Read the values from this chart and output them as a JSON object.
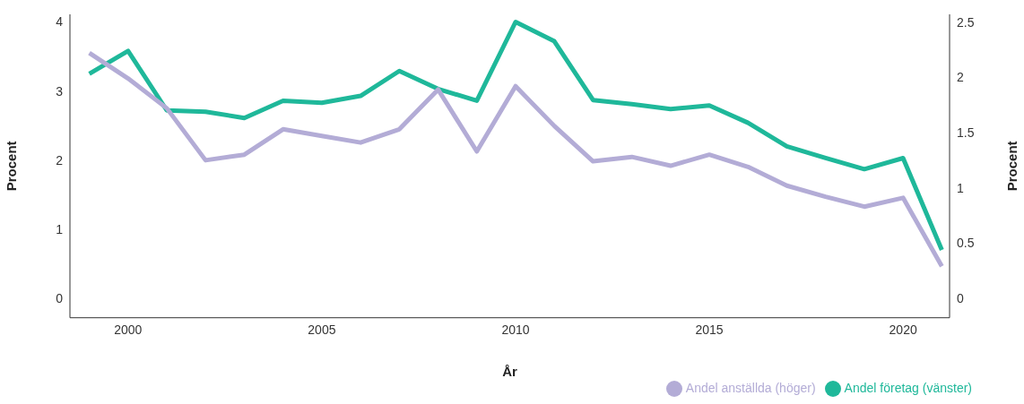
{
  "chart_data": {
    "type": "line",
    "xlabel": "År",
    "ylabel": "Procent",
    "y2label": "Procent",
    "x": [
      1999,
      2000,
      2001,
      2002,
      2003,
      2004,
      2005,
      2006,
      2007,
      2008,
      2009,
      2010,
      2011,
      2012,
      2013,
      2014,
      2015,
      2016,
      2017,
      2018,
      2019,
      2020,
      2021
    ],
    "series": [
      {
        "name": "Andel företag (vänster)",
        "color": "#1fb89a",
        "values": [
          3.25,
          3.58,
          2.72,
          2.7,
          2.61,
          2.86,
          2.83,
          2.93,
          3.29,
          3.03,
          2.86,
          4.0,
          3.72,
          2.87,
          2.81,
          2.74,
          2.79,
          2.54,
          2.2,
          2.03,
          1.87,
          2.03,
          0.7
        ]
      },
      {
        "name": "Andel anställda (höger)",
        "color": "#b3acd6",
        "axis": "y2",
        "values": [
          2.22,
          1.99,
          1.72,
          1.25,
          1.3,
          1.53,
          1.47,
          1.41,
          1.53,
          1.89,
          1.33,
          1.92,
          1.56,
          1.24,
          1.28,
          1.2,
          1.3,
          1.19,
          1.02,
          0.92,
          0.83,
          0.91,
          0.29
        ]
      }
    ],
    "xlim": [
      1998.5,
      2021.2
    ],
    "xticks": [
      2000,
      2005,
      2010,
      2015,
      2020
    ],
    "ylim": [
      -0.28,
      4.11
    ],
    "yticks": [
      0,
      1,
      2,
      3,
      4
    ],
    "y2lim": [
      -0.175,
      2.57
    ],
    "y2ticks": [
      0,
      0.5,
      1,
      1.5,
      2,
      2.5
    ],
    "grid": false,
    "legend": "bottom right",
    "line_style": "solid"
  }
}
